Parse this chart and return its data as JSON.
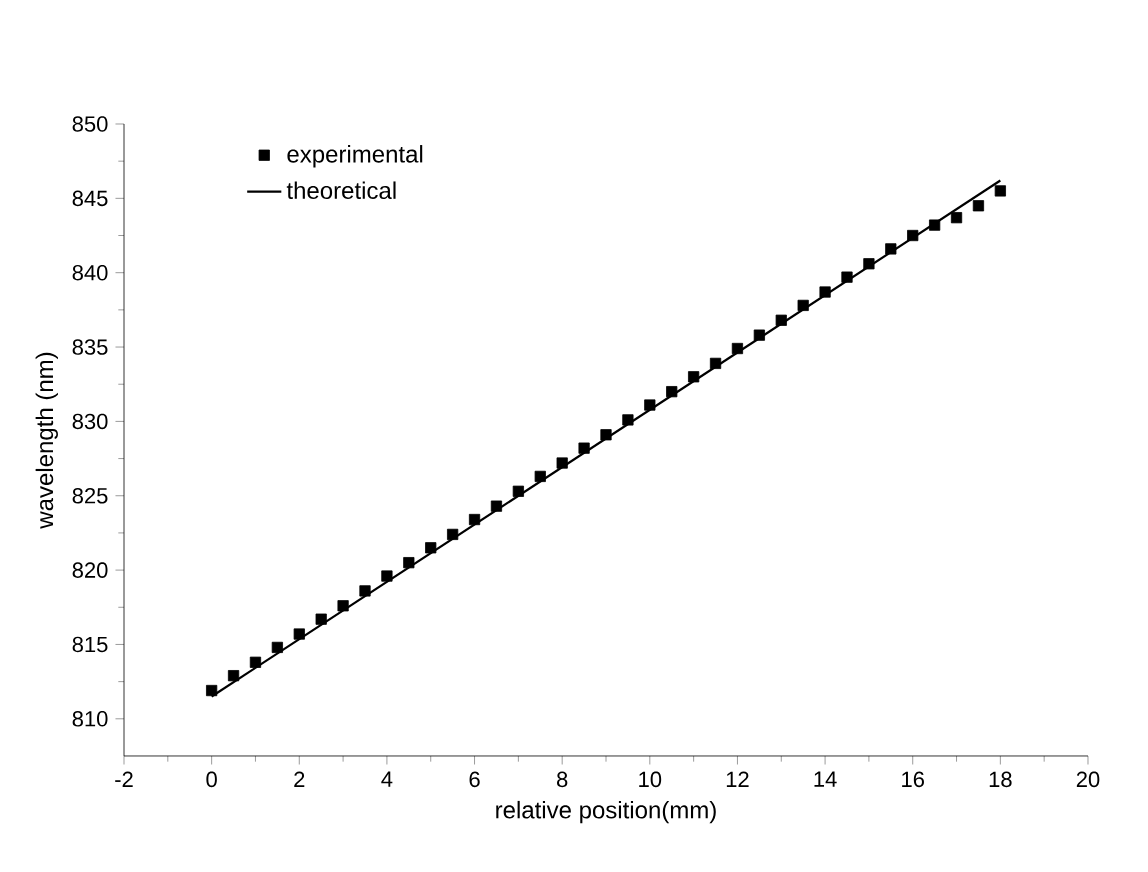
{
  "chart_data": {
    "type": "scatter",
    "xlabel": "relative position(mm)",
    "ylabel": "wavelength (nm)",
    "xlim": [
      -2,
      20
    ],
    "ylim": [
      807.5,
      850
    ],
    "xticks": [
      -2,
      0,
      2,
      4,
      6,
      8,
      10,
      12,
      14,
      16,
      18,
      20
    ],
    "yticks": [
      810,
      815,
      820,
      825,
      830,
      835,
      840,
      845,
      850
    ],
    "grid": false,
    "legend": "top left",
    "series": [
      {
        "name": "experimental",
        "marker": "square",
        "color": "#000000",
        "x": [
          0,
          0.5,
          1,
          1.5,
          2,
          2.5,
          3,
          3.5,
          4,
          4.5,
          5,
          5.5,
          6,
          6.5,
          7,
          7.5,
          8,
          8.5,
          9,
          9.5,
          10,
          10.5,
          11,
          11.5,
          12,
          12.5,
          13,
          13.5,
          14,
          14.5,
          15,
          15.5,
          16,
          16.5,
          17,
          17.5,
          18
        ],
        "values": [
          811.9,
          812.9,
          813.8,
          814.8,
          815.7,
          816.7,
          817.6,
          818.6,
          819.6,
          820.5,
          821.5,
          822.4,
          823.4,
          824.3,
          825.3,
          826.3,
          827.2,
          828.2,
          829.1,
          830.1,
          831.1,
          832.0,
          833.0,
          833.9,
          834.9,
          835.8,
          836.8,
          837.8,
          838.7,
          839.7,
          840.6,
          841.6,
          842.5,
          843.2,
          843.7,
          844.5,
          845.5
        ]
      },
      {
        "name": "theoretical",
        "type": "line",
        "marker": "none",
        "line_style": "solid",
        "color": "#000000",
        "x": [
          0,
          18
        ],
        "values": [
          811.5,
          846.2
        ]
      }
    ]
  }
}
